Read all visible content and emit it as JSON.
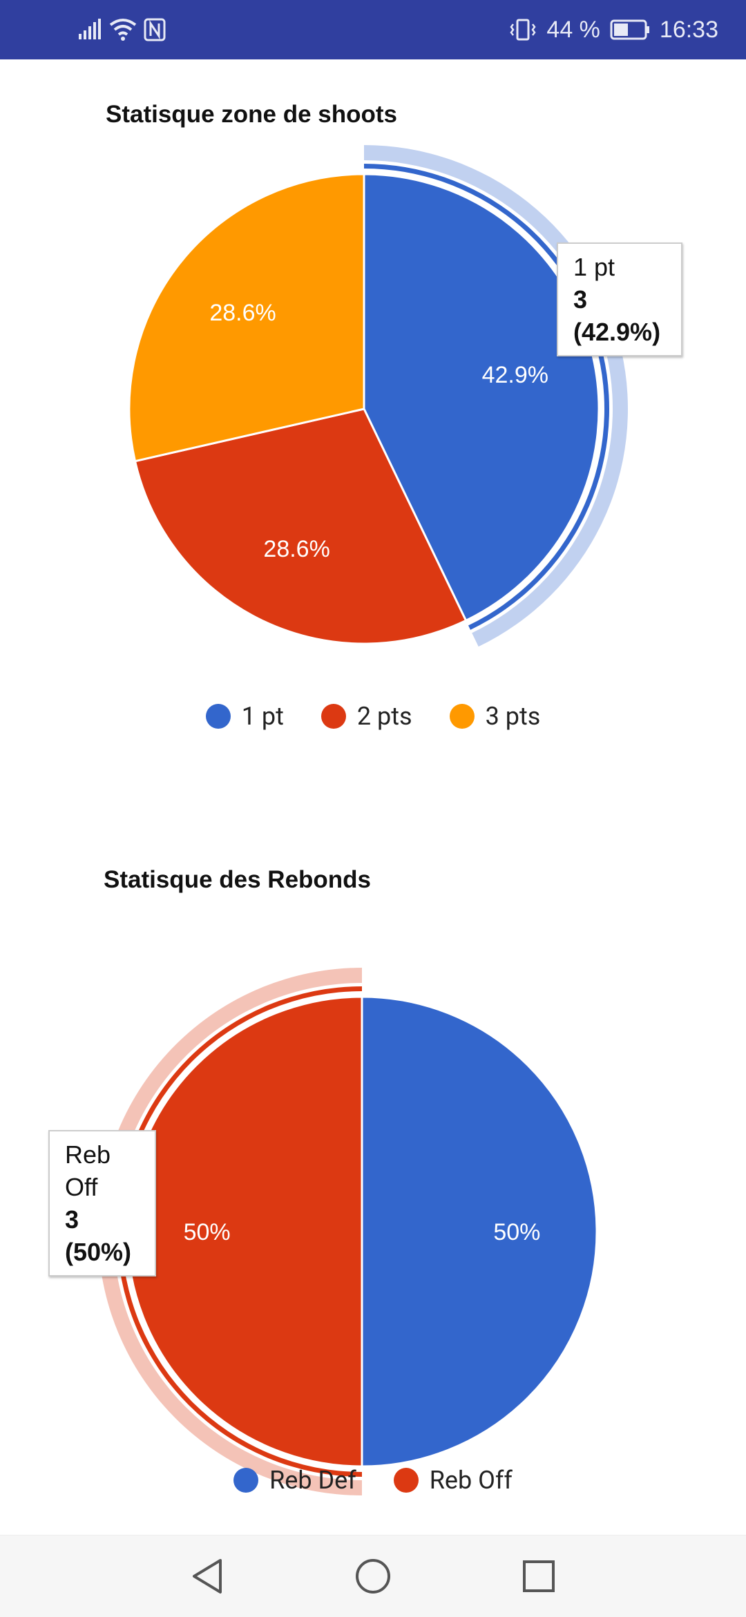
{
  "status_bar": {
    "battery": "44 %",
    "time": "16:33",
    "icons": [
      "signal-icon",
      "wifi-icon",
      "nfc-icon",
      "vibrate-icon",
      "battery-icon"
    ]
  },
  "charts": [
    {
      "title": "Statisque zone de shoots",
      "tooltip": {
        "label": "1 pt",
        "value": "3 (42.9%)"
      },
      "slice_labels": [
        "42.9%",
        "28.6%",
        "28.6%"
      ]
    },
    {
      "title": "Statisque des Rebonds",
      "tooltip": {
        "label": "Reb Off",
        "value": "3 (50%)"
      },
      "slice_labels": [
        "50%",
        "50%"
      ]
    }
  ],
  "chart_data": [
    {
      "type": "pie",
      "title": "Statisque zone de shoots",
      "categories": [
        "1 pt",
        "2 pts",
        "3 pts"
      ],
      "values": [
        3,
        2,
        2
      ],
      "percentages": [
        42.9,
        28.6,
        28.6
      ],
      "colors": [
        "#3366cc",
        "#dc3912",
        "#ff9900"
      ],
      "legend_position": "bottom",
      "highlighted": "1 pt"
    },
    {
      "type": "pie",
      "title": "Statisque des Rebonds",
      "categories": [
        "Reb Def",
        "Reb Off"
      ],
      "values": [
        3,
        3
      ],
      "percentages": [
        50,
        50
      ],
      "colors": [
        "#3366cc",
        "#dc3912"
      ],
      "legend_position": "bottom",
      "highlighted": "Reb Off"
    }
  ],
  "nav_bar": {
    "icons": [
      "back-icon",
      "home-icon",
      "recents-icon"
    ]
  }
}
